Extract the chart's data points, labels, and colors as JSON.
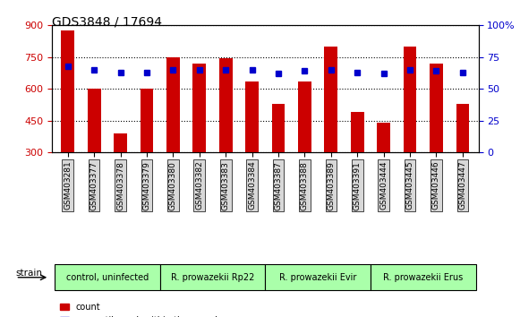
{
  "title": "GDS3848 / 17694",
  "samples": [
    "GSM403281",
    "GSM403377",
    "GSM403378",
    "GSM403379",
    "GSM403380",
    "GSM403382",
    "GSM403383",
    "GSM403384",
    "GSM403387",
    "GSM403388",
    "GSM403389",
    "GSM403391",
    "GSM403444",
    "GSM403445",
    "GSM403446",
    "GSM403447"
  ],
  "counts": [
    875,
    600,
    390,
    600,
    750,
    720,
    745,
    635,
    530,
    635,
    800,
    490,
    440,
    800,
    720,
    530
  ],
  "percentiles": [
    68,
    65,
    63,
    63,
    65,
    65,
    65,
    65,
    62,
    64,
    65,
    63,
    62,
    65,
    64,
    63
  ],
  "strain_groups": [
    {
      "label": "control, uninfected",
      "start": 0,
      "end": 4,
      "color": "#aaffaa"
    },
    {
      "label": "R. prowazekii Rp22",
      "start": 4,
      "end": 8,
      "color": "#aaffaa"
    },
    {
      "label": "R. prowazekii Evir",
      "start": 8,
      "end": 12,
      "color": "#aaffaa"
    },
    {
      "label": "R. prowazekii Erus",
      "start": 12,
      "end": 16,
      "color": "#aaffaa"
    }
  ],
  "ylim_left": [
    300,
    900
  ],
  "ylim_right": [
    0,
    100
  ],
  "yticks_left": [
    300,
    450,
    600,
    750,
    900
  ],
  "yticks_right": [
    0,
    25,
    50,
    75,
    100
  ],
  "bar_color": "#cc0000",
  "dot_color": "#0000cc",
  "bar_bottom": 300,
  "grid_color": "black",
  "bg_color": "#f0f0f0"
}
